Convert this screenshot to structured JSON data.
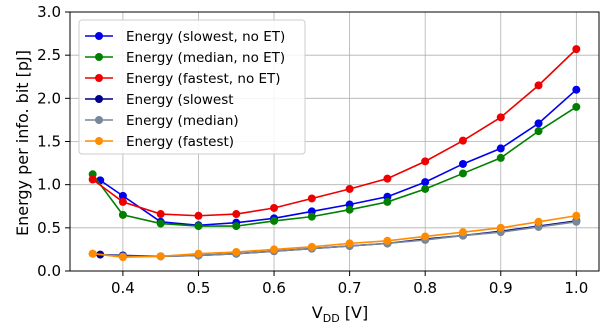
{
  "chart_data": {
    "type": "line",
    "xlabel_main": "V",
    "xlabel_sub": "DD",
    "xlabel_unit": " [V]",
    "ylabel": "Energy per info. bit [pJ]",
    "xlim": [
      0.33,
      1.03
    ],
    "ylim": [
      0.0,
      3.0
    ],
    "xticks": [
      0.4,
      0.5,
      0.6,
      0.7,
      0.8,
      0.9,
      1.0
    ],
    "xtick_labels": [
      "0.4",
      "0.5",
      "0.6",
      "0.7",
      "0.8",
      "0.9",
      "1.0"
    ],
    "yticks": [
      0.0,
      0.5,
      1.0,
      1.5,
      2.0,
      2.5,
      3.0
    ],
    "ytick_labels": [
      "0.0",
      "0.5",
      "1.0",
      "1.5",
      "2.0",
      "2.5",
      "3.0"
    ],
    "grid": true,
    "legend_position": "top-left",
    "x": [
      0.36,
      0.37,
      0.4,
      0.45,
      0.5,
      0.55,
      0.6,
      0.65,
      0.7,
      0.75,
      0.8,
      0.85,
      0.9,
      0.95,
      1.0
    ],
    "series": [
      {
        "name": "Energy (slowest, no ET)",
        "color": "#0000ee",
        "x": [
          0.37,
          0.4,
          0.45,
          0.5,
          0.55,
          0.6,
          0.65,
          0.7,
          0.75,
          0.8,
          0.85,
          0.9,
          0.95,
          1.0
        ],
        "values": [
          1.05,
          0.87,
          0.57,
          0.53,
          0.56,
          0.61,
          0.69,
          0.77,
          0.86,
          1.03,
          1.24,
          1.42,
          1.71,
          2.1
        ]
      },
      {
        "name": "Energy (median, no ET)",
        "color": "#008000",
        "x": [
          0.36,
          0.4,
          0.45,
          0.5,
          0.55,
          0.6,
          0.65,
          0.7,
          0.75,
          0.8,
          0.85,
          0.9,
          0.95,
          1.0
        ],
        "values": [
          1.12,
          0.65,
          0.55,
          0.52,
          0.52,
          0.58,
          0.63,
          0.71,
          0.8,
          0.95,
          1.13,
          1.31,
          1.62,
          1.9
        ]
      },
      {
        "name": "Energy (fastest, no ET)",
        "color": "#ee0000",
        "x": [
          0.36,
          0.4,
          0.45,
          0.5,
          0.55,
          0.6,
          0.65,
          0.7,
          0.75,
          0.8,
          0.85,
          0.9,
          0.95,
          1.0
        ],
        "values": [
          1.06,
          0.8,
          0.66,
          0.64,
          0.66,
          0.73,
          0.84,
          0.95,
          1.07,
          1.27,
          1.51,
          1.78,
          2.15,
          2.57
        ]
      },
      {
        "name": "Energy (slowest",
        "color": "#00008b",
        "x": [
          0.37,
          0.4,
          0.45,
          0.5,
          0.55,
          0.6,
          0.65,
          0.7,
          0.75,
          0.8,
          0.85,
          0.9,
          0.95,
          1.0
        ],
        "values": [
          0.19,
          0.18,
          0.17,
          0.18,
          0.2,
          0.23,
          0.26,
          0.29,
          0.32,
          0.37,
          0.41,
          0.46,
          0.52,
          0.58
        ]
      },
      {
        "name": "Energy (median)",
        "color": "#778899",
        "x": [
          0.36,
          0.4,
          0.45,
          0.5,
          0.55,
          0.6,
          0.65,
          0.7,
          0.75,
          0.8,
          0.85,
          0.9,
          0.95,
          1.0
        ],
        "values": [
          0.2,
          0.17,
          0.17,
          0.18,
          0.2,
          0.23,
          0.26,
          0.29,
          0.32,
          0.36,
          0.41,
          0.45,
          0.51,
          0.57
        ]
      },
      {
        "name": "Energy (fastest)",
        "color": "#ff8c00",
        "x": [
          0.36,
          0.4,
          0.45,
          0.5,
          0.55,
          0.6,
          0.65,
          0.7,
          0.75,
          0.8,
          0.85,
          0.9,
          0.95,
          1.0
        ],
        "values": [
          0.2,
          0.16,
          0.17,
          0.2,
          0.22,
          0.25,
          0.28,
          0.32,
          0.35,
          0.4,
          0.45,
          0.5,
          0.57,
          0.64
        ]
      }
    ]
  }
}
